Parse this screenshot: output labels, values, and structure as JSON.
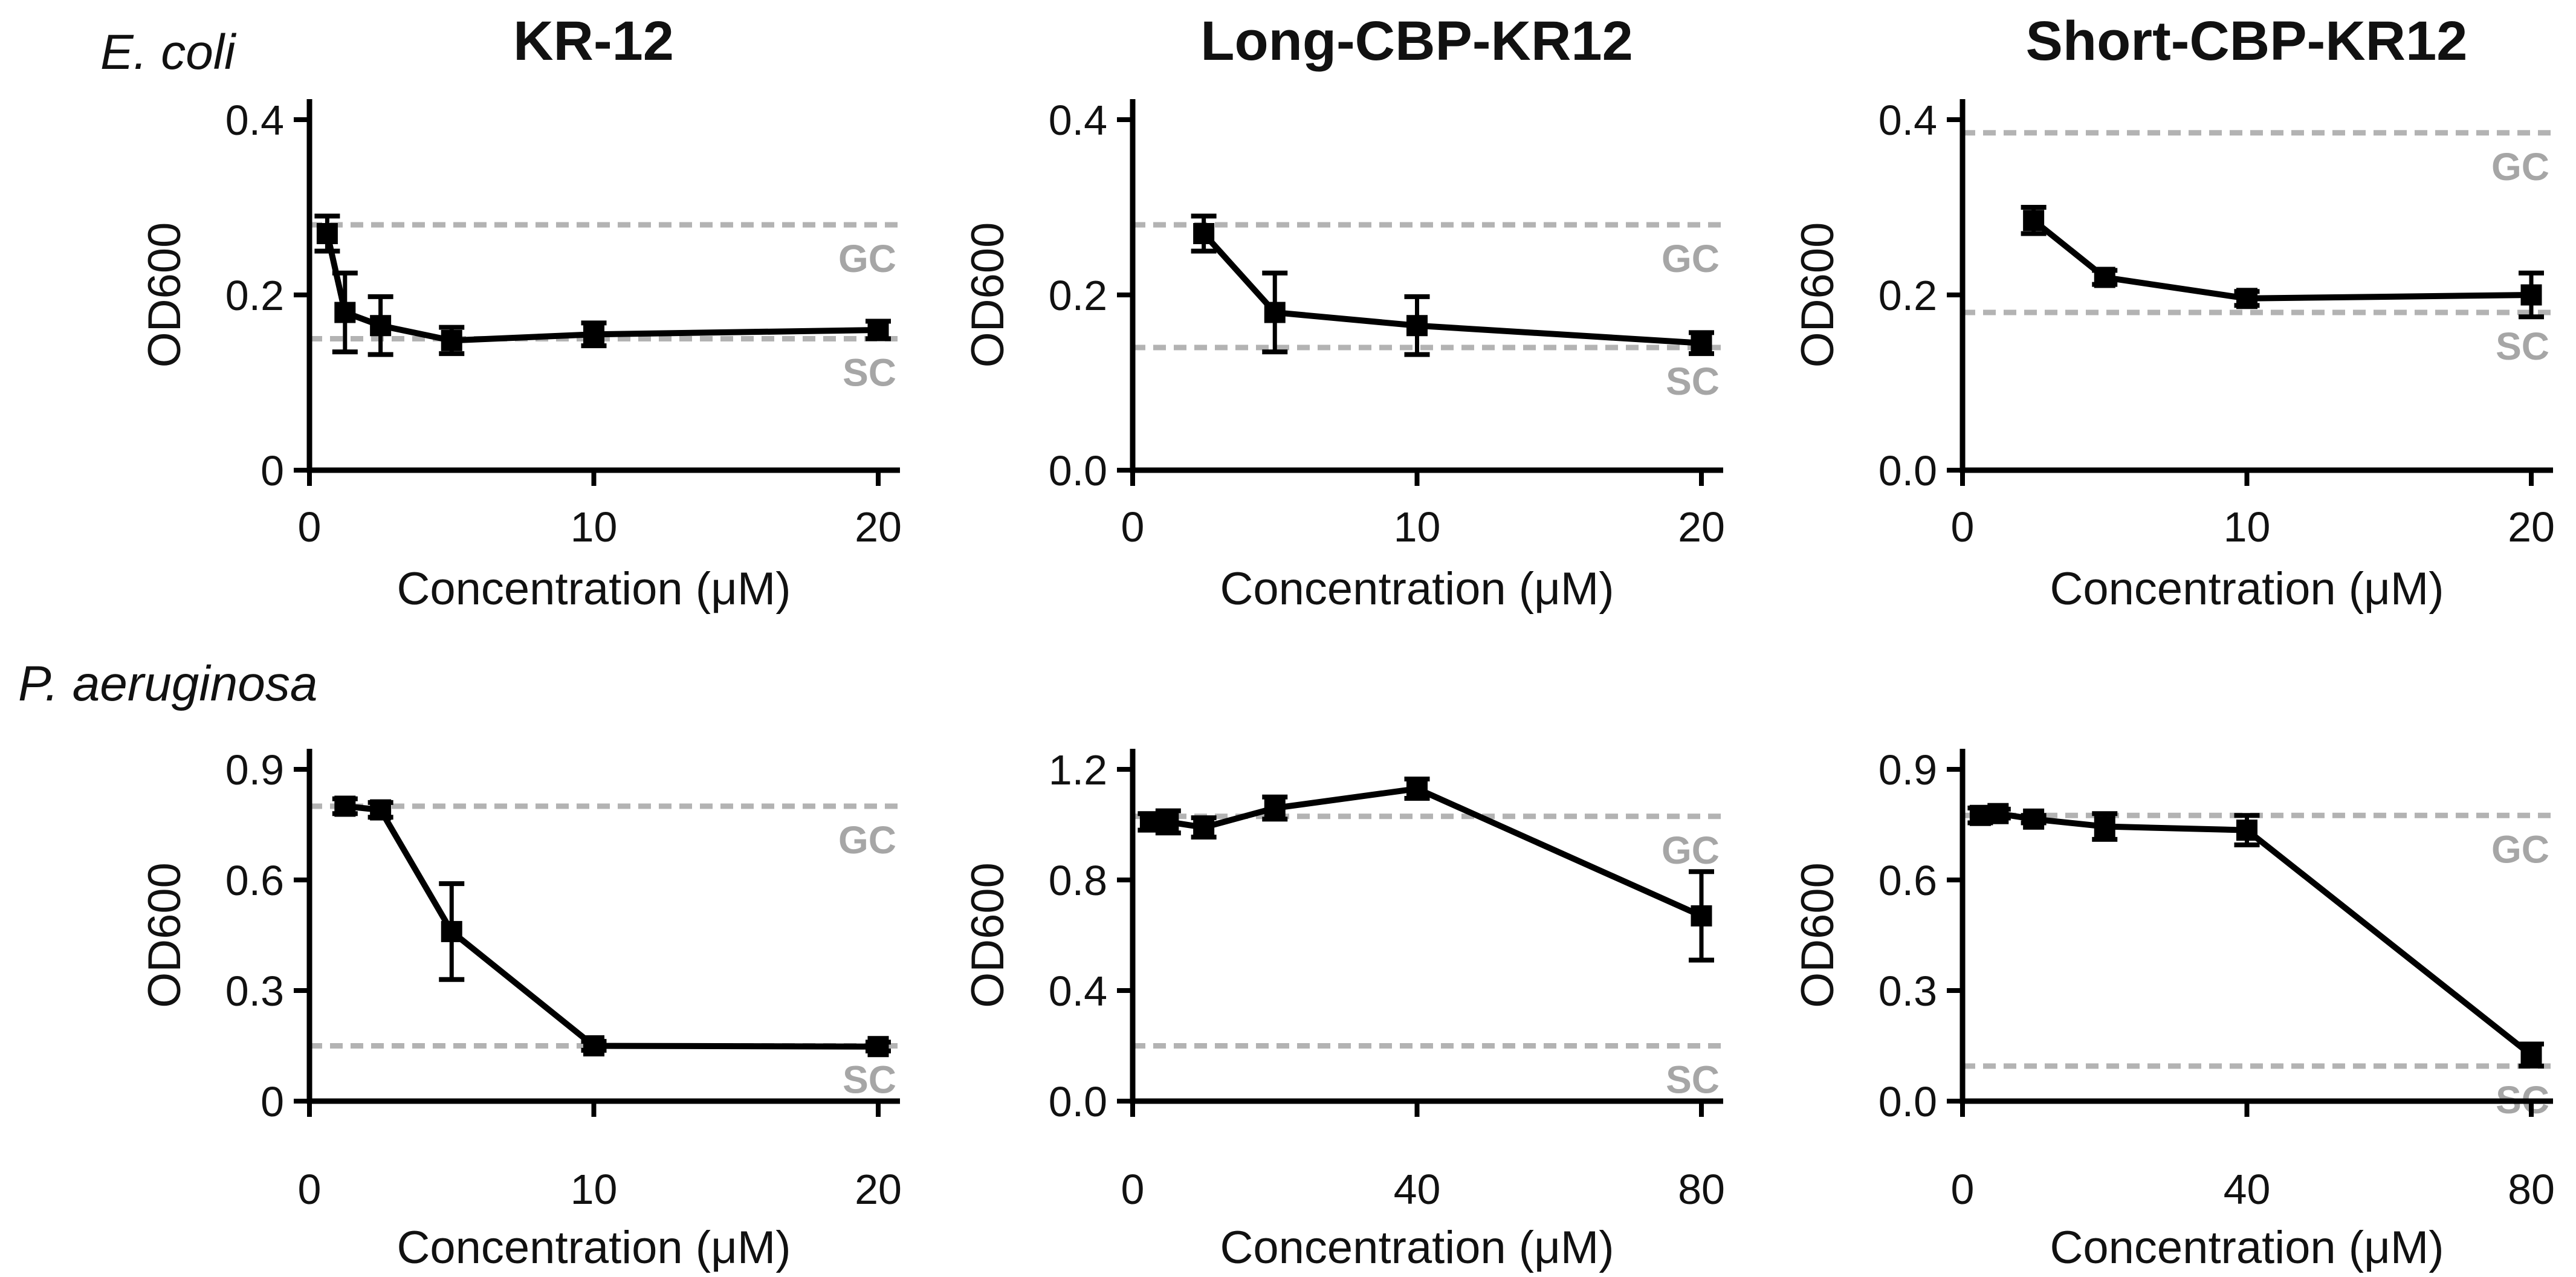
{
  "figure": {
    "row_labels": [
      {
        "text": "E. coli"
      },
      {
        "text": "P. aeruginosa"
      }
    ],
    "column_titles": [
      "KR-12",
      "Long-CBP-KR12",
      "Short-CBP-KR12"
    ],
    "reference_labels": {
      "upper": "GC",
      "lower": "SC"
    },
    "colors": {
      "data": "#000000",
      "reference_line": "#b3b3b3",
      "reference_text": "#a6a6a6",
      "text": "#111111",
      "background": "#ffffff"
    }
  },
  "chart_data": [
    {
      "type": "line",
      "organism": "E. coli",
      "peptide": "KR-12",
      "title": "KR-12",
      "xlabel": "Concentration (μM)",
      "ylabel": "OD600",
      "x": [
        0.625,
        1.25,
        2.5,
        5,
        10,
        20
      ],
      "y": [
        0.27,
        0.18,
        0.165,
        0.148,
        0.155,
        0.16
      ],
      "yerr": [
        0.02,
        0.045,
        0.033,
        0.015,
        0.013,
        0.01
      ],
      "gc": 0.28,
      "sc": 0.15,
      "xlim": [
        0,
        20.7
      ],
      "ylim": [
        0,
        0.4
      ],
      "xticks": [
        0,
        10,
        20
      ],
      "xtick_labels": [
        "0",
        "10",
        "20"
      ],
      "yticks": [
        0,
        0.2,
        0.4
      ],
      "ytick_labels": [
        "0",
        "0.2",
        "0.4"
      ],
      "grid": false,
      "legend": "none"
    },
    {
      "type": "line",
      "organism": "E. coli",
      "peptide": "Long-CBP-KR12",
      "title": "Long-CBP-KR12",
      "xlabel": "Concentration (μM)",
      "ylabel": "OD600",
      "x": [
        2.5,
        5,
        10,
        20
      ],
      "y": [
        0.27,
        0.18,
        0.165,
        0.145
      ],
      "yerr": [
        0.02,
        0.045,
        0.033,
        0.012
      ],
      "gc": 0.28,
      "sc": 0.14,
      "xlim": [
        0,
        20.7
      ],
      "ylim": [
        0,
        0.4
      ],
      "xticks": [
        0,
        10,
        20
      ],
      "xtick_labels": [
        "0",
        "10",
        "20"
      ],
      "yticks": [
        0,
        0.2,
        0.4
      ],
      "ytick_labels": [
        "0.0",
        "0.2",
        "0.4"
      ],
      "grid": false,
      "legend": "none"
    },
    {
      "type": "line",
      "organism": "E. coli",
      "peptide": "Short-CBP-KR12",
      "title": "Short-CBP-KR12",
      "xlabel": "Concentration (μM)",
      "ylabel": "OD600",
      "x": [
        2.5,
        5,
        10,
        20
      ],
      "y": [
        0.285,
        0.22,
        0.196,
        0.2
      ],
      "yerr": [
        0.015,
        0.008,
        0.008,
        0.025
      ],
      "gc": 0.385,
      "sc": 0.18,
      "xlim": [
        0,
        20.7
      ],
      "ylim": [
        0,
        0.4
      ],
      "xticks": [
        0,
        10,
        20
      ],
      "xtick_labels": [
        "0",
        "10",
        "20"
      ],
      "yticks": [
        0,
        0.2,
        0.4
      ],
      "ytick_labels": [
        "0.0",
        "0.2",
        "0.4"
      ],
      "grid": false,
      "legend": "none"
    },
    {
      "type": "line",
      "organism": "P. aeruginosa",
      "peptide": "KR-12",
      "title": "",
      "xlabel": "Concentration (μM)",
      "ylabel": "OD600",
      "x": [
        1.25,
        2.5,
        5,
        10,
        20
      ],
      "y": [
        0.8,
        0.79,
        0.46,
        0.15,
        0.148
      ],
      "yerr": [
        0.02,
        0.02,
        0.13,
        0.012,
        0.012
      ],
      "gc": 0.8,
      "sc": 0.15,
      "xlim": [
        0,
        20.7
      ],
      "ylim": [
        0,
        0.9
      ],
      "xticks": [
        0,
        10,
        20
      ],
      "xtick_labels": [
        "0",
        "10",
        "20"
      ],
      "yticks": [
        0,
        0.3,
        0.6,
        0.9
      ],
      "ytick_labels": [
        "0",
        "0.3",
        "0.6",
        "0.9"
      ],
      "grid": false,
      "legend": "none"
    },
    {
      "type": "line",
      "organism": "P. aeruginosa",
      "peptide": "Long-CBP-KR12",
      "title": "",
      "xlabel": "Concentration (μM)",
      "ylabel": "OD600",
      "x": [
        2.5,
        5,
        10,
        20,
        40,
        80
      ],
      "y": [
        1.01,
        1.01,
        0.99,
        1.06,
        1.13,
        0.67
      ],
      "yerr": [
        0.03,
        0.04,
        0.035,
        0.04,
        0.035,
        0.16
      ],
      "gc": 1.03,
      "sc": 0.2,
      "xlim": [
        0,
        82.8
      ],
      "ylim": [
        0,
        1.2
      ],
      "xticks": [
        0,
        40,
        80
      ],
      "xtick_labels": [
        "0",
        "40",
        "80"
      ],
      "yticks": [
        0,
        0.4,
        0.8,
        1.2
      ],
      "ytick_labels": [
        "0.0",
        "0.4",
        "0.8",
        "1.2"
      ],
      "grid": false,
      "legend": "none"
    },
    {
      "type": "line",
      "organism": "P. aeruginosa",
      "peptide": "Short-CBP-KR12",
      "title": "",
      "xlabel": "Concentration (μM)",
      "ylabel": "OD600",
      "x": [
        2.5,
        5,
        10,
        20,
        40,
        80
      ],
      "y": [
        0.775,
        0.78,
        0.765,
        0.745,
        0.735,
        0.125
      ],
      "yerr": [
        0.02,
        0.012,
        0.01,
        0.035,
        0.04,
        0.03
      ],
      "gc": 0.775,
      "sc": 0.095,
      "xlim": [
        0,
        82.8
      ],
      "ylim": [
        0,
        0.9
      ],
      "xticks": [
        0,
        40,
        80
      ],
      "xtick_labels": [
        "0",
        "40",
        "80"
      ],
      "yticks": [
        0,
        0.3,
        0.6,
        0.9
      ],
      "ytick_labels": [
        "0.0",
        "0.3",
        "0.6",
        "0.9"
      ],
      "grid": false,
      "legend": "none"
    }
  ]
}
